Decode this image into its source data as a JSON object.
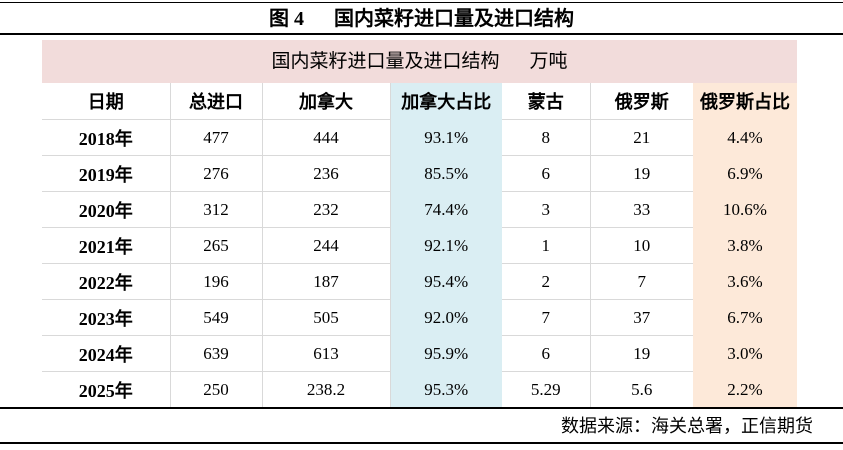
{
  "figure": {
    "caption_prefix": "图 4",
    "caption_title": "国内菜籽进口量及进口结构"
  },
  "table": {
    "title": "国内菜籽进口量及进口结构",
    "unit": "万吨",
    "columns": [
      "日期",
      "总进口",
      "加拿大",
      "加拿大占比",
      "蒙古",
      "俄罗斯",
      "俄罗斯占比"
    ],
    "rows": [
      [
        "2018年",
        "477",
        "444",
        "93.1%",
        "8",
        "21",
        "4.4%"
      ],
      [
        "2019年",
        "276",
        "236",
        "85.5%",
        "6",
        "19",
        "6.9%"
      ],
      [
        "2020年",
        "312",
        "232",
        "74.4%",
        "3",
        "33",
        "10.6%"
      ],
      [
        "2021年",
        "265",
        "244",
        "92.1%",
        "1",
        "10",
        "3.8%"
      ],
      [
        "2022年",
        "196",
        "187",
        "95.4%",
        "2",
        "7",
        "3.6%"
      ],
      [
        "2023年",
        "549",
        "505",
        "92.0%",
        "7",
        "37",
        "6.7%"
      ],
      [
        "2024年",
        "639",
        "613",
        "95.9%",
        "6",
        "19",
        "3.0%"
      ],
      [
        "2025年",
        "250",
        "238.2",
        "95.3%",
        "5.29",
        "5.6",
        "2.2%"
      ]
    ]
  },
  "source": {
    "label": "数据来源：海关总署，正信期货"
  },
  "colors": {
    "banner_bg": "#f2dcdb",
    "canada_share_bg": "#daeef3",
    "russia_share_bg": "#fde9d9",
    "grid_line": "#d9d9d9",
    "rule_line": "#000000"
  }
}
